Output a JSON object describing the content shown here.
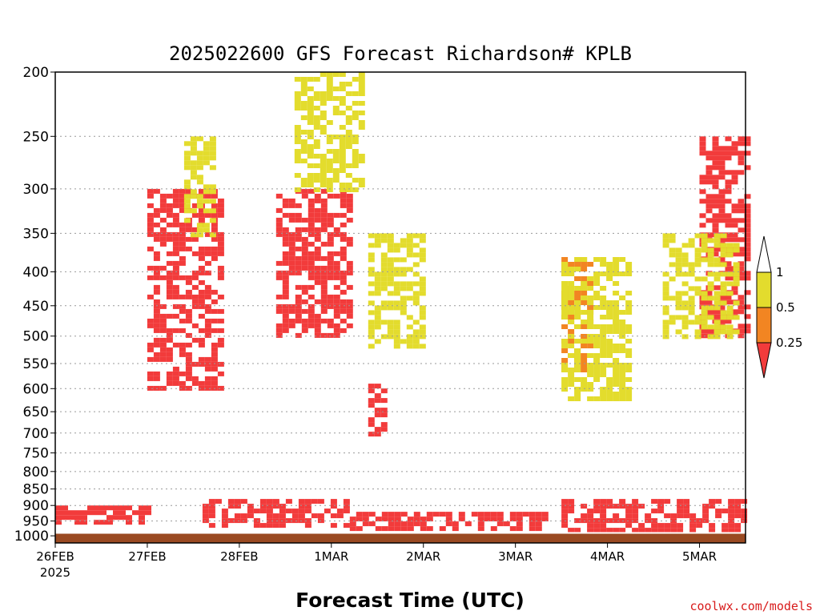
{
  "chart_data": {
    "type": "heatmap",
    "title": "2025022600 GFS Forecast Richardson# KPLB",
    "xlabel": "Forecast Time (UTC)",
    "ylabel": "",
    "credit": "coolwx.com/models",
    "x_ticks": [
      "26FEB",
      "27FEB",
      "28FEB",
      "1MAR",
      "2MAR",
      "3MAR",
      "4MAR",
      "5MAR"
    ],
    "x_year": "2025",
    "x_range_days": [
      0,
      7.5
    ],
    "y_ticks": [
      "200",
      "250",
      "300",
      "350",
      "400",
      "450",
      "500",
      "550",
      "600",
      "650",
      "700",
      "750",
      "800",
      "850",
      "900",
      "950",
      "1000"
    ],
    "y_range_hpa": [
      200,
      1025
    ],
    "y_scale": "log-pressure",
    "grid": "horizontal dotted",
    "colorbar": {
      "labels": [
        "1",
        "0.5",
        "0.25"
      ],
      "bins": [
        {
          "range": "0.5-1",
          "color": "#e3dc2d"
        },
        {
          "range": "0.25-0.5",
          "color": "#f28522"
        },
        {
          "range": "<0.25",
          "color": "#f23b3b"
        }
      ],
      "placement": "right"
    },
    "ground_color": "#9a4a22",
    "features": [
      {
        "level": "<0.25",
        "t": [
          0.0,
          1.0
        ],
        "p": [
          900,
          960
        ]
      },
      {
        "level": "<0.25",
        "t": [
          1.6,
          3.2
        ],
        "p": [
          880,
          970
        ]
      },
      {
        "level": "<0.25",
        "t": [
          3.2,
          5.3
        ],
        "p": [
          920,
          975
        ]
      },
      {
        "level": "<0.25",
        "t": [
          5.5,
          7.5
        ],
        "p": [
          880,
          990
        ]
      },
      {
        "level": "<0.25",
        "t": [
          1.0,
          1.8
        ],
        "p": [
          300,
          600
        ]
      },
      {
        "level": "<0.25",
        "t": [
          2.4,
          3.2
        ],
        "p": [
          300,
          500
        ]
      },
      {
        "level": "<0.25",
        "t": [
          3.4,
          3.6
        ],
        "p": [
          580,
          700
        ]
      },
      {
        "level": "0.25-0.5",
        "t": [
          5.5,
          5.8
        ],
        "p": [
          380,
          560
        ]
      },
      {
        "level": "<0.25",
        "t": [
          7.0,
          7.5
        ],
        "p": [
          250,
          500
        ]
      },
      {
        "level": "0.5-1",
        "t": [
          1.4,
          1.7
        ],
        "p": [
          250,
          350
        ]
      },
      {
        "level": "0.5-1",
        "t": [
          2.6,
          3.3
        ],
        "p": [
          200,
          300
        ]
      },
      {
        "level": "0.5-1",
        "t": [
          3.4,
          4.0
        ],
        "p": [
          350,
          520
        ]
      },
      {
        "level": "0.5-1",
        "t": [
          5.5,
          6.2
        ],
        "p": [
          380,
          620
        ]
      },
      {
        "level": "0.5-1",
        "t": [
          6.6,
          7.4
        ],
        "p": [
          350,
          500
        ]
      }
    ]
  }
}
